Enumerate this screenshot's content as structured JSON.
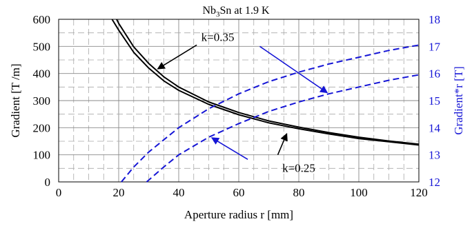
{
  "chart_data": {
    "type": "line",
    "title": {
      "main": "Nb",
      "sub": "3",
      "rest": "Sn at 1.9 K"
    },
    "xlabel": "Aperture radius r [mm]",
    "ylabel_left": "Gradient [T /m]",
    "ylabel_right": "Gradient*r [T]",
    "xlim": [
      0,
      120
    ],
    "ylim_left": [
      0,
      600
    ],
    "ylim_right": [
      12,
      18
    ],
    "xticks": [
      0,
      20,
      40,
      60,
      80,
      100,
      120
    ],
    "yticks_left": [
      0,
      100,
      200,
      300,
      400,
      500,
      600
    ],
    "yticks_right": [
      12,
      13,
      14,
      15,
      16,
      17,
      18
    ],
    "grid": "major solid, minor dashed",
    "colors": {
      "gradient": "#000000",
      "gradient_r": "#1515d6",
      "right_axis_text": "#1515d6"
    },
    "series": [
      {
        "axis": "left",
        "color": "#000000",
        "dash": false,
        "x": [
          17.8,
          20,
          25,
          30,
          35,
          40,
          50,
          60,
          70,
          80,
          90,
          100,
          110,
          120
        ],
        "y": [
          600,
          560,
          478,
          420,
          373,
          338,
          286,
          248,
          218,
          196,
          177,
          160,
          148,
          136
        ]
      },
      {
        "axis": "left",
        "color": "#000000",
        "dash": false,
        "x": [
          19.3,
          20,
          25,
          30,
          35,
          40,
          50,
          60,
          70,
          80,
          90,
          100,
          110,
          120
        ],
        "y": [
          600,
          585,
          498,
          437,
          388,
          350,
          295,
          256,
          225,
          202,
          182,
          165,
          151,
          139
        ]
      },
      {
        "axis": "right",
        "color": "#1515d6",
        "dash": true,
        "x": [
          20.9,
          25,
          30,
          40,
          50,
          60,
          70,
          80,
          90,
          100,
          110,
          120
        ],
        "y": [
          12.0,
          12.55,
          13.1,
          14.0,
          14.7,
          15.25,
          15.7,
          16.05,
          16.35,
          16.6,
          16.85,
          17.05
        ]
      },
      {
        "axis": "right",
        "color": "#1515d6",
        "dash": true,
        "x": [
          29.3,
          35,
          40,
          50,
          60,
          70,
          80,
          90,
          100,
          110,
          120
        ],
        "y": [
          12.0,
          12.55,
          13.0,
          13.65,
          14.15,
          14.6,
          14.95,
          15.25,
          15.5,
          15.75,
          15.95
        ]
      }
    ],
    "annotations": [
      {
        "text": "k=0.35",
        "x": 53,
        "y": 535,
        "arrows": [
          {
            "color": "#000000",
            "from": [
              46,
              505
            ],
            "to": [
              33,
              417
            ]
          },
          {
            "color": "#1515d6",
            "from": [
              67,
              500
            ],
            "to": [
              89.5,
              329
            ]
          }
        ]
      },
      {
        "text": "k=0.25",
        "x": 80,
        "y": 52,
        "arrows": [
          {
            "color": "#000000",
            "from": [
              73,
              100
            ],
            "to": [
              76,
              178
            ]
          },
          {
            "color": "#1515d6",
            "from": [
              63,
              83
            ],
            "to": [
              51,
              163
            ]
          }
        ]
      }
    ]
  }
}
